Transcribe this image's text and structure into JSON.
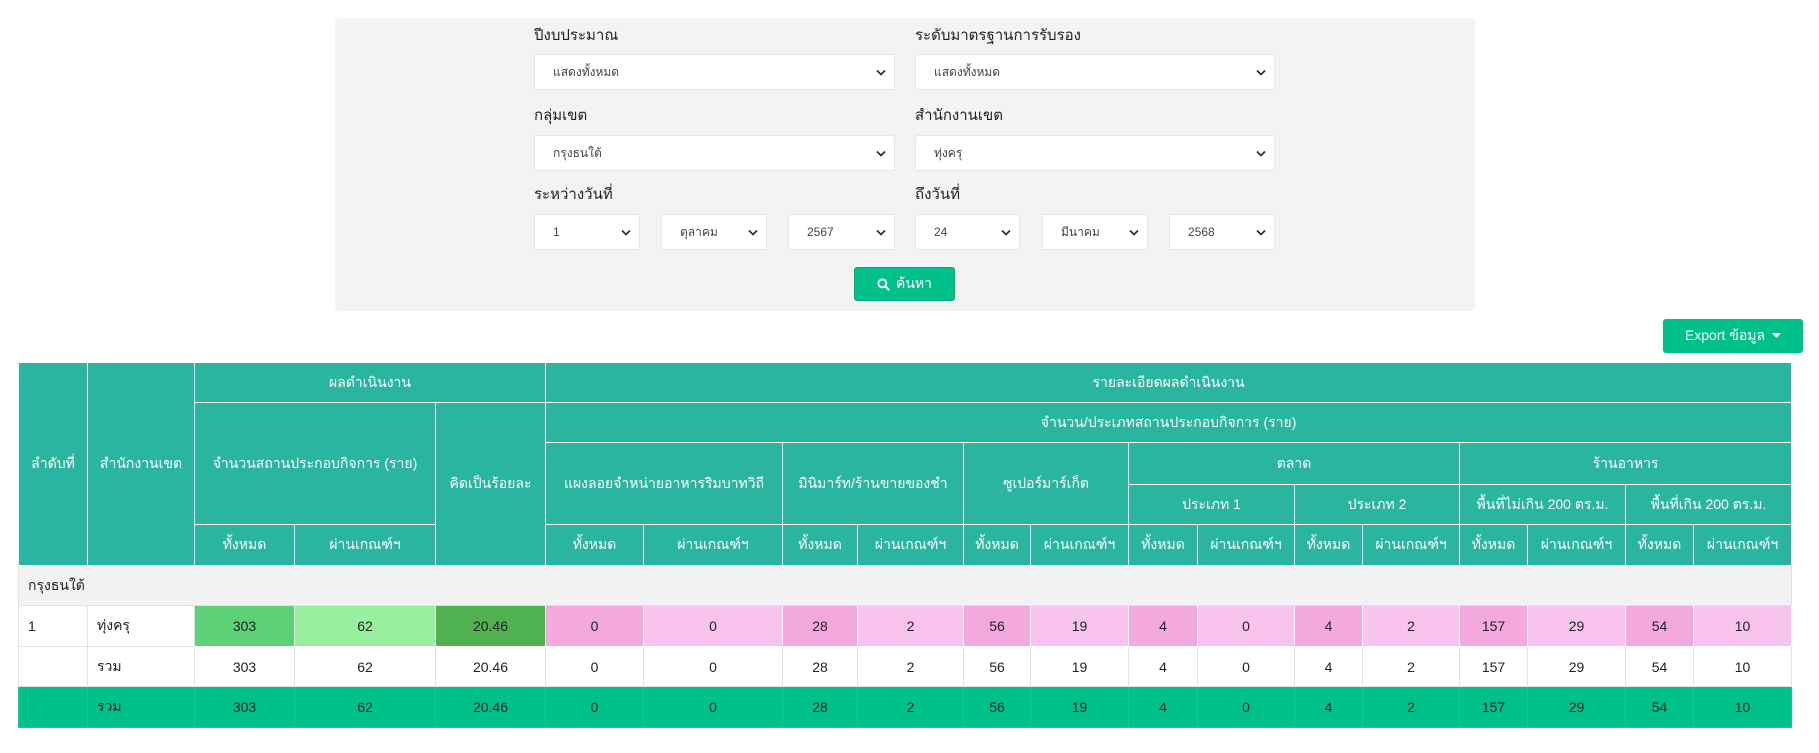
{
  "filters": {
    "fiscal_year": {
      "label": "ปีงบประมาณ",
      "value": "แสดงทั้งหมด"
    },
    "standard_level": {
      "label": "ระดับมาตรฐานการรับรอง",
      "value": "แสดงทั้งหมด"
    },
    "district_group": {
      "label": "กลุ่มเขต",
      "value": "กรุงธนใต้"
    },
    "district_office": {
      "label": "สำนักงานเขต",
      "value": "ทุ่งครุ"
    },
    "date_from": {
      "label": "ระหว่างวันที่",
      "day": "1",
      "month": "ตุลาคม",
      "year": "2567"
    },
    "date_to": {
      "label": "ถึงวันที่",
      "day": "24",
      "month": "มีนาคม",
      "year": "2568"
    },
    "search_label": "ค้นหา"
  },
  "export_label": "Export ข้อมูล",
  "table": {
    "headers": {
      "order": "ลำดับที่",
      "district": "สำนักงานเขต",
      "performance": "ผลดำเนินงาน",
      "details": "รายละเอียดผลดำเนินงาน",
      "establishment_count": "จำนวนสถานประกอบกิจการ (ราย)",
      "percent": "คิดเป็นร้อยละ",
      "by_type": "จำนวน/ประเภทสถานประกอบกิจการ (ราย)",
      "street_stall": "แผงลอยจำหน่ายอาหารริมบาทวิถี",
      "minimart": "มินิมาร์ท/ร้านขายของชำ",
      "supermarket": "ซูเปอร์มาร์เก็ต",
      "market": "ตลาด",
      "restaurant": "ร้านอาหาร",
      "market_type1": "ประเภท 1",
      "market_type2": "ประเภท 2",
      "restaurant_small": "พื้นที่ไม่เกิน 200 ตร.ม.",
      "restaurant_large": "พื้นที่เกิน 200 ตร.ม.",
      "total": "ทั้งหมด",
      "passed": "ผ่านเกณฑ์ฯ"
    },
    "group_name": "กรุงธนใต้",
    "rows": [
      {
        "order": "1",
        "district": "ทุ่งครุ",
        "values": [
          "303",
          "62",
          "20.46",
          "0",
          "0",
          "28",
          "2",
          "56",
          "19",
          "4",
          "0",
          "4",
          "2",
          "157",
          "29",
          "54",
          "10"
        ]
      }
    ],
    "subtotal": {
      "label": "รวม",
      "values": [
        "303",
        "62",
        "20.46",
        "0",
        "0",
        "28",
        "2",
        "56",
        "19",
        "4",
        "0",
        "4",
        "2",
        "157",
        "29",
        "54",
        "10"
      ]
    },
    "total": {
      "label": "รวม",
      "values": [
        "303",
        "62",
        "20.46",
        "0",
        "0",
        "28",
        "2",
        "56",
        "19",
        "4",
        "0",
        "4",
        "2",
        "157",
        "29",
        "54",
        "10"
      ]
    }
  },
  "colors": {
    "panel": "#f3f3f3",
    "header": "#2ab5a0",
    "accent": "#00c08c",
    "group_row": "#f2f2f2",
    "establishments_total": "#5dd178",
    "establishments_passed": "#98ef9e",
    "percent": "#50b150",
    "category_total": "#f3a8de",
    "category_passed": "#f8c3ec"
  }
}
